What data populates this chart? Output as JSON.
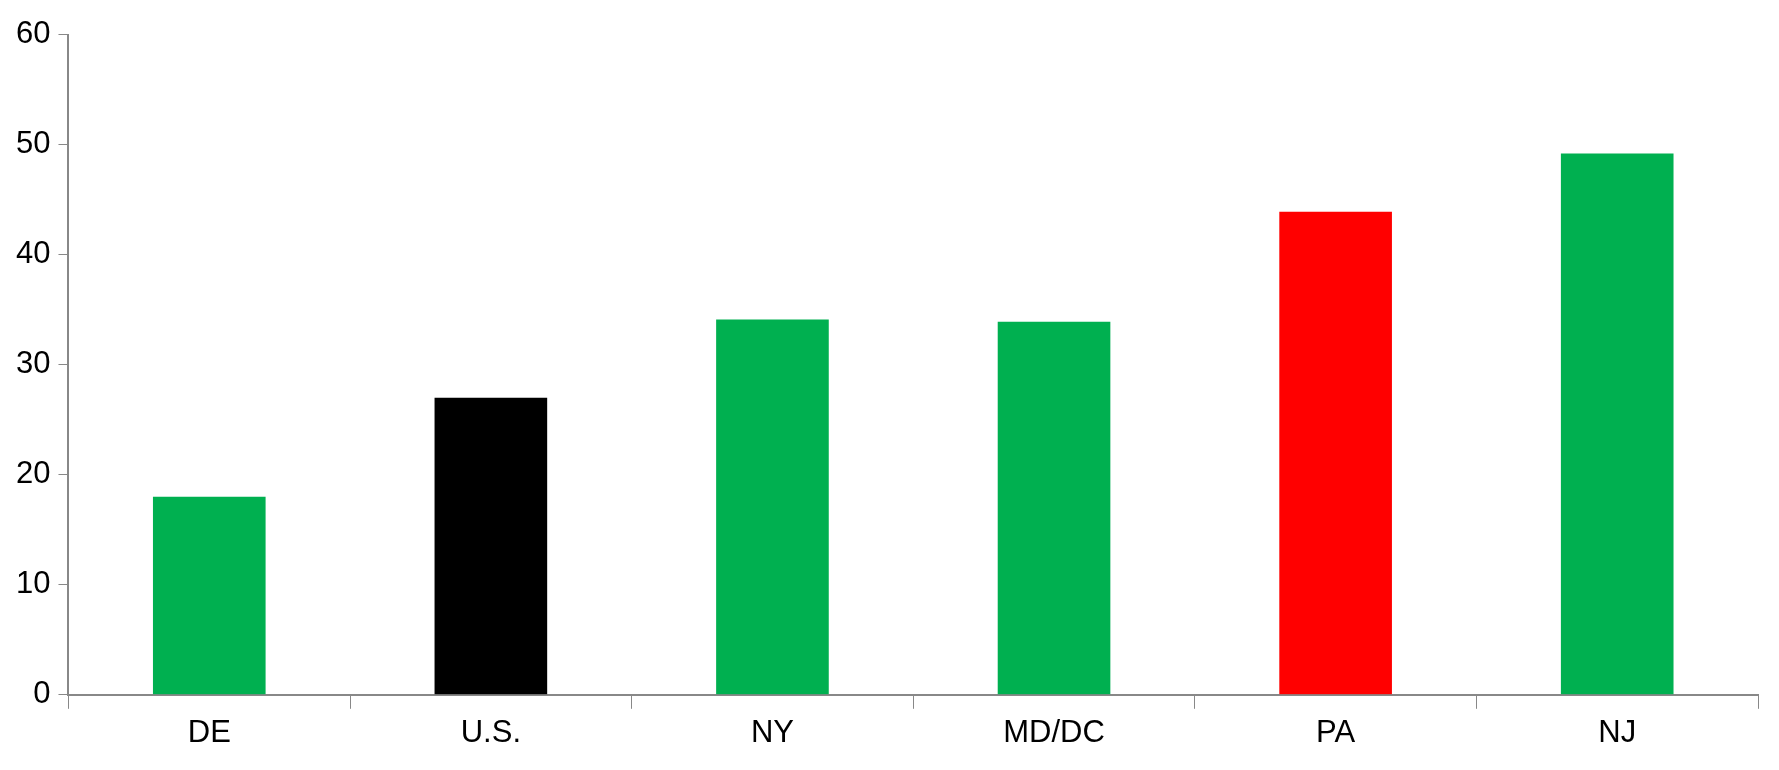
{
  "chart_data": {
    "type": "bar",
    "categories": [
      "DE",
      "U.S.",
      "NY",
      "MD/DC",
      "PA",
      "NJ"
    ],
    "values": [
      18,
      27,
      34.1,
      33.9,
      43.9,
      49.2
    ],
    "colors": [
      "#00b050",
      "#000000",
      "#00b050",
      "#00b050",
      "#ff0000",
      "#00b050"
    ],
    "ylim": [
      0,
      60
    ],
    "yticks": [
      0,
      10,
      20,
      30,
      40,
      50,
      60
    ],
    "grid": false,
    "legend": false
  }
}
